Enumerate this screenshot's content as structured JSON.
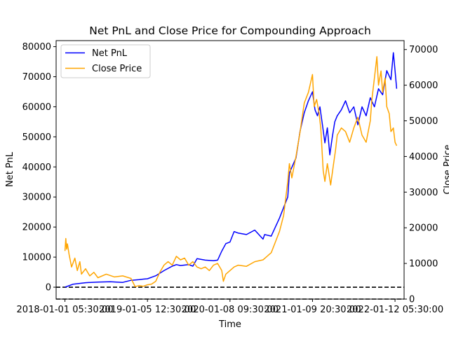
{
  "chart_data": {
    "type": "line",
    "title": "Net PnL and Close Price for Compounding Approach",
    "xlabel": "Time",
    "ylabel_left": "Net PnL",
    "ylabel_right": "Close Price",
    "x_ticks": [
      "2018-01-01 05:30:00",
      "2019-01-05 12:30:00",
      "2020-01-08 09:30:00",
      "2021-01-09 20:30:00",
      "2022-01-12 05:30:00"
    ],
    "xlim": [
      -0.107,
      4.11
    ],
    "y_left_ticks": [
      0,
      10000,
      20000,
      30000,
      40000,
      50000,
      60000,
      70000,
      80000
    ],
    "y_left_lim": [
      -3950,
      82000
    ],
    "y_right_ticks": [
      0,
      10000,
      20000,
      30000,
      40000,
      50000,
      60000,
      70000
    ],
    "y_right_lim": [
      0,
      72500
    ],
    "reference_lines": [
      {
        "axis": "left",
        "y": 0,
        "style": "dashed",
        "color": "#000000"
      },
      {
        "axis": "right",
        "y": 0,
        "style": "dashed",
        "color": "#000000"
      }
    ],
    "legend": {
      "placement": "top-left"
    },
    "series": [
      {
        "name": "Net PnL",
        "axis": "left",
        "color": "#0000ff",
        "x": [
          0.0,
          0.1,
          0.25,
          0.4,
          0.55,
          0.7,
          0.8,
          0.9,
          0.95,
          1.0,
          1.1,
          1.2,
          1.3,
          1.35,
          1.4,
          1.5,
          1.55,
          1.6,
          1.7,
          1.8,
          1.85,
          1.9,
          1.95,
          2.0,
          2.05,
          2.1,
          2.2,
          2.3,
          2.4,
          2.42,
          2.5,
          2.55,
          2.6,
          2.7,
          2.72,
          2.8,
          2.85,
          2.9,
          2.95,
          3.0,
          3.03,
          3.06,
          3.09,
          3.12,
          3.15,
          3.18,
          3.21,
          3.24,
          3.27,
          3.3,
          3.35,
          3.4,
          3.45,
          3.5,
          3.55,
          3.6,
          3.65,
          3.7,
          3.75,
          3.8,
          3.85,
          3.9,
          3.95,
          3.98,
          4.0,
          4.02
        ],
        "values": [
          0,
          1000,
          1500,
          1700,
          1800,
          1600,
          2300,
          2500,
          2700,
          2800,
          3800,
          5500,
          7000,
          7500,
          7200,
          7500,
          7000,
          9500,
          9000,
          8800,
          9000,
          12000,
          14500,
          15000,
          18500,
          18000,
          17500,
          19000,
          16000,
          17500,
          17000,
          20000,
          23000,
          30000,
          38000,
          43000,
          52000,
          58000,
          62000,
          65000,
          59000,
          57000,
          60000,
          54000,
          48000,
          53000,
          44000,
          50000,
          55000,
          57000,
          59000,
          62000,
          58000,
          60000,
          54000,
          60000,
          57000,
          63000,
          60000,
          66000,
          64000,
          72000,
          69000,
          78000,
          72000,
          66000
        ]
      },
      {
        "name": "Close Price",
        "axis": "right",
        "color": "#ffa500",
        "x": [
          0.0,
          0.01,
          0.02,
          0.03,
          0.05,
          0.08,
          0.12,
          0.15,
          0.18,
          0.2,
          0.25,
          0.3,
          0.35,
          0.4,
          0.5,
          0.6,
          0.7,
          0.8,
          0.85,
          0.9,
          0.95,
          1.0,
          1.05,
          1.1,
          1.15,
          1.2,
          1.25,
          1.3,
          1.35,
          1.4,
          1.45,
          1.5,
          1.55,
          1.6,
          1.65,
          1.7,
          1.75,
          1.8,
          1.85,
          1.9,
          1.92,
          1.95,
          2.0,
          2.05,
          2.1,
          2.2,
          2.3,
          2.4,
          2.5,
          2.55,
          2.6,
          2.65,
          2.7,
          2.72,
          2.75,
          2.8,
          2.85,
          2.9,
          2.95,
          3.0,
          3.02,
          3.05,
          3.08,
          3.1,
          3.13,
          3.15,
          3.18,
          3.2,
          3.22,
          3.25,
          3.28,
          3.3,
          3.35,
          3.4,
          3.45,
          3.5,
          3.55,
          3.6,
          3.65,
          3.7,
          3.72,
          3.75,
          3.78,
          3.8,
          3.83,
          3.85,
          3.88,
          3.9,
          3.93,
          3.95,
          3.98,
          4.0,
          4.02
        ],
        "values": [
          13500,
          17000,
          14000,
          15500,
          12500,
          9000,
          11500,
          8000,
          10500,
          7000,
          8500,
          6500,
          7500,
          6000,
          7000,
          6200,
          6500,
          5800,
          3500,
          3800,
          3600,
          4000,
          4200,
          5000,
          7500,
          9500,
          10500,
          9500,
          12000,
          11000,
          11500,
          9500,
          10500,
          9000,
          8500,
          9000,
          8000,
          9500,
          10000,
          8000,
          5000,
          7000,
          8000,
          9000,
          9500,
          9200,
          10500,
          11000,
          13000,
          16000,
          19000,
          23500,
          33000,
          38000,
          34000,
          40000,
          47000,
          55000,
          58000,
          63000,
          54000,
          56000,
          52000,
          48000,
          36000,
          33000,
          38000,
          35000,
          32000,
          37000,
          42000,
          46000,
          48000,
          47000,
          44000,
          48000,
          51000,
          46000,
          44000,
          50000,
          56000,
          62000,
          68000,
          60000,
          64000,
          58000,
          62000,
          54000,
          52000,
          47000,
          48000,
          44000,
          43000
        ]
      }
    ]
  }
}
